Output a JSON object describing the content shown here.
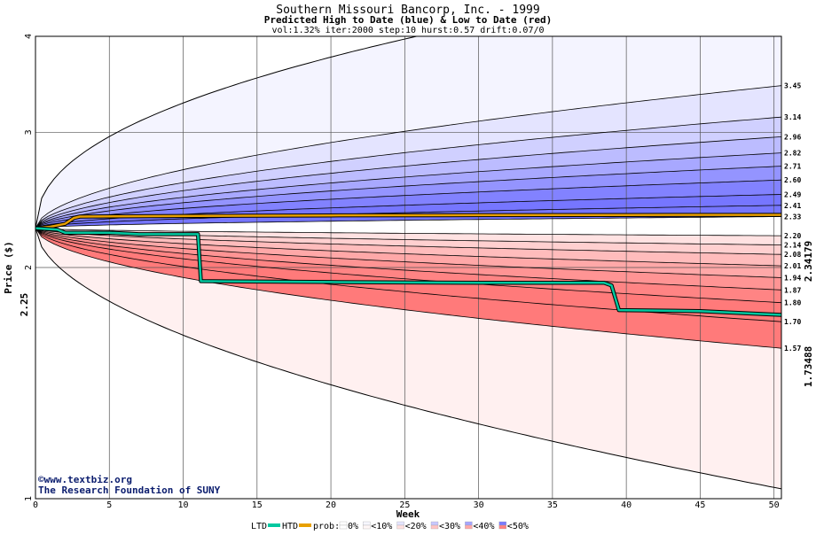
{
  "chart_data": {
    "type": "area",
    "title": "Southern Missouri Bancorp, Inc. - 1999",
    "subtitle": "Predicted High to Date (blue) &  Low to Date (red)",
    "params": "vol:1.32% iter:2000 step:10 hurst:0.57 drift:0.07/0",
    "xlabel": "Week",
    "ylabel": "Price ($)",
    "xlim": [
      0,
      50.5
    ],
    "ylim": [
      1,
      4
    ],
    "y_scale": "log",
    "x_ticks": [
      0,
      5,
      10,
      15,
      20,
      25,
      30,
      35,
      40,
      45,
      50
    ],
    "y_ticks": [
      1,
      2,
      3,
      4
    ],
    "start_price": 2.25,
    "start_label": "2.25",
    "high_end_label": "2.34179",
    "low_end_label": "1.73488",
    "grid": true,
    "quantiles_high": [
      {
        "label": "3.45",
        "end": 3.45
      },
      {
        "label": "3.14",
        "end": 3.14
      },
      {
        "label": "2.96",
        "end": 2.96
      },
      {
        "label": "2.82",
        "end": 2.82
      },
      {
        "label": "2.71",
        "end": 2.71
      },
      {
        "label": "2.60",
        "end": 2.6
      },
      {
        "label": "2.49",
        "end": 2.49
      },
      {
        "label": "2.41",
        "end": 2.41
      },
      {
        "label": "2.33",
        "end": 2.33
      }
    ],
    "quantiles_low": [
      {
        "label": "2.20",
        "end": 2.2
      },
      {
        "label": "2.14",
        "end": 2.14
      },
      {
        "label": "2.08",
        "end": 2.08
      },
      {
        "label": "2.01",
        "end": 2.01
      },
      {
        "label": "1.94",
        "end": 1.94
      },
      {
        "label": "1.87",
        "end": 1.87
      },
      {
        "label": "1.80",
        "end": 1.8
      },
      {
        "label": "1.70",
        "end": 1.7
      },
      {
        "label": "1.57",
        "end": 1.57
      }
    ],
    "outer_envelope": {
      "high_end": 4.0,
      "low_end": 1.03
    },
    "series": [
      {
        "name": "HTD",
        "color": "#e8a000",
        "points": [
          [
            0,
            2.25
          ],
          [
            1,
            2.26
          ],
          [
            1.5,
            2.27
          ],
          [
            2,
            2.28
          ],
          [
            2.6,
            2.32
          ],
          [
            3,
            2.33
          ],
          [
            11,
            2.335
          ],
          [
            20,
            2.338
          ],
          [
            30,
            2.34
          ],
          [
            40,
            2.341
          ],
          [
            50.5,
            2.342
          ]
        ]
      },
      {
        "name": "LTD",
        "color": "#00c8a0",
        "points": [
          [
            0,
            2.25
          ],
          [
            1.5,
            2.24
          ],
          [
            2,
            2.22
          ],
          [
            5,
            2.22
          ],
          [
            7,
            2.21
          ],
          [
            11,
            2.21
          ],
          [
            11.2,
            1.92
          ],
          [
            20,
            1.915
          ],
          [
            30,
            1.91
          ],
          [
            38.5,
            1.91
          ],
          [
            39,
            1.895
          ],
          [
            39.5,
            1.76
          ],
          [
            45,
            1.755
          ],
          [
            50.5,
            1.735
          ]
        ]
      }
    ],
    "legend": {
      "ltd": "LTD",
      "htd": "HTD",
      "prob_prefix": "prob:",
      "items": [
        {
          "label": "0%",
          "blue": "#ffffff",
          "red": "#ffffff"
        },
        {
          "label": "<10%",
          "blue": "#f7f7ff",
          "red": "#fff7f7"
        },
        {
          "label": "<20%",
          "blue": "#e4e4ff",
          "red": "#ffe0e0"
        },
        {
          "label": "<30%",
          "blue": "#c8c8ff",
          "red": "#ffc4c4"
        },
        {
          "label": "<40%",
          "blue": "#a6a6ff",
          "red": "#ffa8a8"
        },
        {
          "label": "<50%",
          "blue": "#7a7aff",
          "red": "#ff8080"
        }
      ]
    }
  },
  "colors": {
    "blue_bands": [
      "#f4f4ff",
      "#e4e4ff",
      "#d0d0ff",
      "#bcbcff",
      "#a8a8ff",
      "#9494ff",
      "#8282ff",
      "#7676ff"
    ],
    "red_bands": [
      "#fff4f4",
      "#ffe2e2",
      "#ffd0d0",
      "#ffbcbc",
      "#ffa8a8",
      "#ff9494",
      "#ff8484",
      "#ff7a7a"
    ],
    "outer_blue": "#f4f4ff",
    "outer_red": "#fff0f0",
    "start_label_color": "#006400",
    "high_end_color": "#8a7a00",
    "low_end_color": "#00806a",
    "credit_color": "#0b1d6e"
  },
  "credits": {
    "line1": "©www.textbiz.org",
    "line2": "The Research Foundation of SUNY"
  }
}
